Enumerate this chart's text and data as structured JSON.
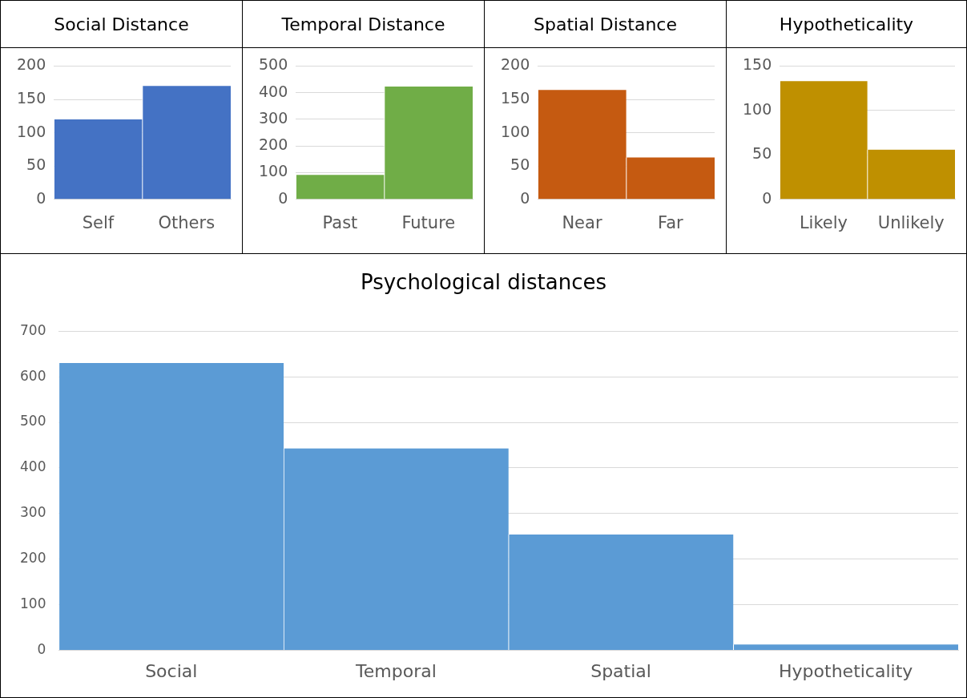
{
  "chart_data": [
    {
      "type": "bar",
      "title": "Social Distance",
      "categories": [
        "Self",
        "Others"
      ],
      "values": [
        120,
        170
      ],
      "color": "#4472c4",
      "ylim": [
        0,
        200
      ],
      "yticks": [
        0,
        50,
        100,
        150,
        200
      ],
      "grid": "y"
    },
    {
      "type": "bar",
      "title": "Temporal Distance",
      "categories": [
        "Past",
        "Future"
      ],
      "values": [
        92,
        423
      ],
      "color": "#70ad47",
      "ylim": [
        0,
        500
      ],
      "yticks": [
        0,
        100,
        200,
        300,
        400,
        500
      ],
      "grid": "y"
    },
    {
      "type": "bar",
      "title": "Spatial Distance",
      "categories": [
        "Near",
        "Far"
      ],
      "values": [
        164,
        63
      ],
      "color": "#c55a11",
      "ylim": [
        0,
        200
      ],
      "yticks": [
        0,
        50,
        100,
        150,
        200
      ],
      "grid": "y"
    },
    {
      "type": "bar",
      "title": "Hypotheticality",
      "categories": [
        "Likely",
        "Unlikely"
      ],
      "values": [
        133,
        56
      ],
      "color": "#bf9000",
      "ylim": [
        0,
        150
      ],
      "yticks": [
        0,
        50,
        100,
        150
      ],
      "grid": "y"
    },
    {
      "type": "bar",
      "title": "Psychological distances",
      "categories": [
        "Social",
        "Temporal",
        "Spatial",
        "Hypotheticality"
      ],
      "values": [
        630,
        443,
        254,
        13
      ],
      "color": "#5b9bd5",
      "ylim": [
        0,
        700
      ],
      "yticks": [
        0,
        100,
        200,
        300,
        400,
        500,
        600,
        700
      ],
      "grid": "y"
    }
  ]
}
